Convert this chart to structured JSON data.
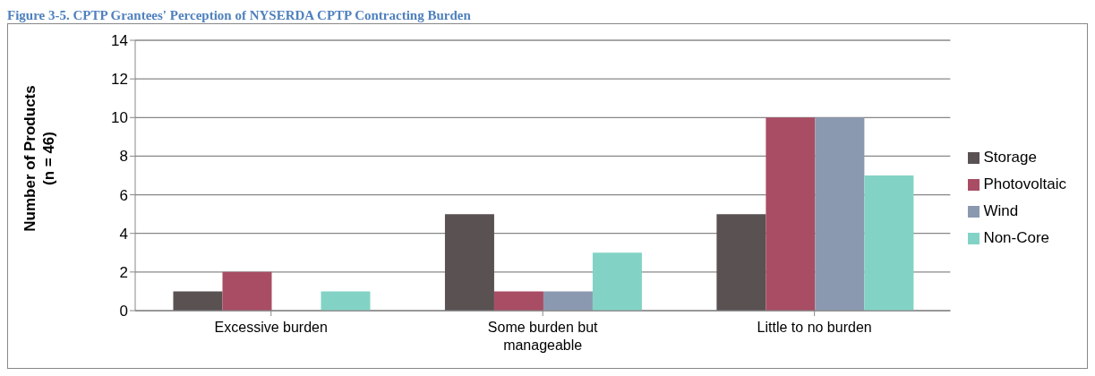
{
  "chart_data": {
    "type": "bar",
    "title": "Figure 3-5. CPTP Grantees' Perception of NYSERDA CPTP Contracting Burden",
    "ylabel": "Number of Products\n(n = 46)",
    "categories": [
      "Excessive burden",
      "Some burden but manageable",
      "Little to no burden"
    ],
    "series": [
      {
        "name": "Storage",
        "color": "#595152",
        "values": [
          1,
          5,
          5
        ]
      },
      {
        "name": "Photovoltaic",
        "color": "#a94d64",
        "values": [
          2,
          1,
          10
        ]
      },
      {
        "name": "Wind",
        "color": "#8b99b0",
        "values": [
          0,
          1,
          10
        ]
      },
      {
        "name": "Non-Core",
        "color": "#82d3c6",
        "values": [
          1,
          3,
          7
        ]
      }
    ],
    "ylim": [
      0,
      14
    ],
    "yticks": [
      0,
      2,
      4,
      6,
      8,
      10,
      12,
      14
    ],
    "grid": "y",
    "legend": "right"
  }
}
